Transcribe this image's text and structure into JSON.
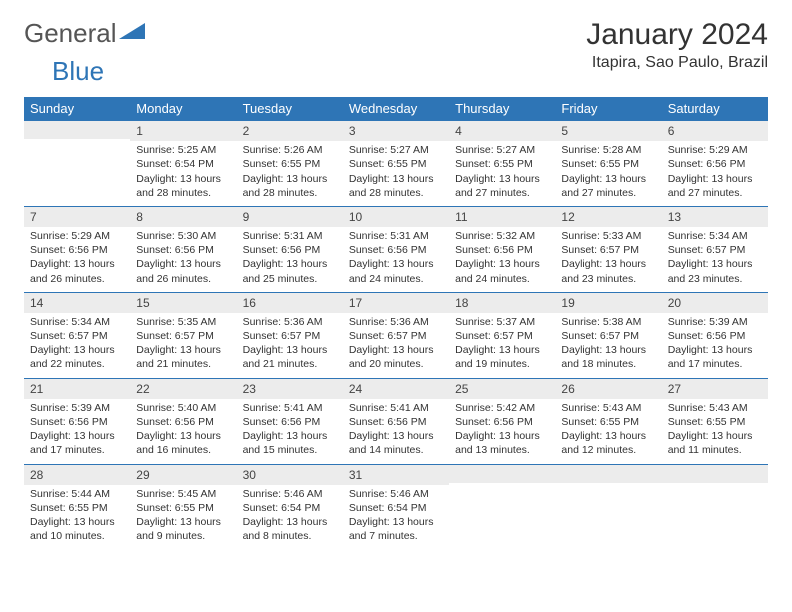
{
  "logo": {
    "text1": "General",
    "text2": "Blue",
    "color_gray": "#555555",
    "color_blue": "#2e75b6"
  },
  "header": {
    "month": "January 2024",
    "location": "Itapira, Sao Paulo, Brazil"
  },
  "theme": {
    "header_bg": "#2e75b6",
    "header_fg": "#ffffff",
    "daynum_bg": "#ececec",
    "border": "#2e75b6"
  },
  "weekdays": [
    "Sunday",
    "Monday",
    "Tuesday",
    "Wednesday",
    "Thursday",
    "Friday",
    "Saturday"
  ],
  "weeks": [
    [
      null,
      {
        "n": "1",
        "sr": "Sunrise: 5:25 AM",
        "ss": "Sunset: 6:54 PM",
        "d1": "Daylight: 13 hours",
        "d2": "and 28 minutes."
      },
      {
        "n": "2",
        "sr": "Sunrise: 5:26 AM",
        "ss": "Sunset: 6:55 PM",
        "d1": "Daylight: 13 hours",
        "d2": "and 28 minutes."
      },
      {
        "n": "3",
        "sr": "Sunrise: 5:27 AM",
        "ss": "Sunset: 6:55 PM",
        "d1": "Daylight: 13 hours",
        "d2": "and 28 minutes."
      },
      {
        "n": "4",
        "sr": "Sunrise: 5:27 AM",
        "ss": "Sunset: 6:55 PM",
        "d1": "Daylight: 13 hours",
        "d2": "and 27 minutes."
      },
      {
        "n": "5",
        "sr": "Sunrise: 5:28 AM",
        "ss": "Sunset: 6:55 PM",
        "d1": "Daylight: 13 hours",
        "d2": "and 27 minutes."
      },
      {
        "n": "6",
        "sr": "Sunrise: 5:29 AM",
        "ss": "Sunset: 6:56 PM",
        "d1": "Daylight: 13 hours",
        "d2": "and 27 minutes."
      }
    ],
    [
      {
        "n": "7",
        "sr": "Sunrise: 5:29 AM",
        "ss": "Sunset: 6:56 PM",
        "d1": "Daylight: 13 hours",
        "d2": "and 26 minutes."
      },
      {
        "n": "8",
        "sr": "Sunrise: 5:30 AM",
        "ss": "Sunset: 6:56 PM",
        "d1": "Daylight: 13 hours",
        "d2": "and 26 minutes."
      },
      {
        "n": "9",
        "sr": "Sunrise: 5:31 AM",
        "ss": "Sunset: 6:56 PM",
        "d1": "Daylight: 13 hours",
        "d2": "and 25 minutes."
      },
      {
        "n": "10",
        "sr": "Sunrise: 5:31 AM",
        "ss": "Sunset: 6:56 PM",
        "d1": "Daylight: 13 hours",
        "d2": "and 24 minutes."
      },
      {
        "n": "11",
        "sr": "Sunrise: 5:32 AM",
        "ss": "Sunset: 6:56 PM",
        "d1": "Daylight: 13 hours",
        "d2": "and 24 minutes."
      },
      {
        "n": "12",
        "sr": "Sunrise: 5:33 AM",
        "ss": "Sunset: 6:57 PM",
        "d1": "Daylight: 13 hours",
        "d2": "and 23 minutes."
      },
      {
        "n": "13",
        "sr": "Sunrise: 5:34 AM",
        "ss": "Sunset: 6:57 PM",
        "d1": "Daylight: 13 hours",
        "d2": "and 23 minutes."
      }
    ],
    [
      {
        "n": "14",
        "sr": "Sunrise: 5:34 AM",
        "ss": "Sunset: 6:57 PM",
        "d1": "Daylight: 13 hours",
        "d2": "and 22 minutes."
      },
      {
        "n": "15",
        "sr": "Sunrise: 5:35 AM",
        "ss": "Sunset: 6:57 PM",
        "d1": "Daylight: 13 hours",
        "d2": "and 21 minutes."
      },
      {
        "n": "16",
        "sr": "Sunrise: 5:36 AM",
        "ss": "Sunset: 6:57 PM",
        "d1": "Daylight: 13 hours",
        "d2": "and 21 minutes."
      },
      {
        "n": "17",
        "sr": "Sunrise: 5:36 AM",
        "ss": "Sunset: 6:57 PM",
        "d1": "Daylight: 13 hours",
        "d2": "and 20 minutes."
      },
      {
        "n": "18",
        "sr": "Sunrise: 5:37 AM",
        "ss": "Sunset: 6:57 PM",
        "d1": "Daylight: 13 hours",
        "d2": "and 19 minutes."
      },
      {
        "n": "19",
        "sr": "Sunrise: 5:38 AM",
        "ss": "Sunset: 6:57 PM",
        "d1": "Daylight: 13 hours",
        "d2": "and 18 minutes."
      },
      {
        "n": "20",
        "sr": "Sunrise: 5:39 AM",
        "ss": "Sunset: 6:56 PM",
        "d1": "Daylight: 13 hours",
        "d2": "and 17 minutes."
      }
    ],
    [
      {
        "n": "21",
        "sr": "Sunrise: 5:39 AM",
        "ss": "Sunset: 6:56 PM",
        "d1": "Daylight: 13 hours",
        "d2": "and 17 minutes."
      },
      {
        "n": "22",
        "sr": "Sunrise: 5:40 AM",
        "ss": "Sunset: 6:56 PM",
        "d1": "Daylight: 13 hours",
        "d2": "and 16 minutes."
      },
      {
        "n": "23",
        "sr": "Sunrise: 5:41 AM",
        "ss": "Sunset: 6:56 PM",
        "d1": "Daylight: 13 hours",
        "d2": "and 15 minutes."
      },
      {
        "n": "24",
        "sr": "Sunrise: 5:41 AM",
        "ss": "Sunset: 6:56 PM",
        "d1": "Daylight: 13 hours",
        "d2": "and 14 minutes."
      },
      {
        "n": "25",
        "sr": "Sunrise: 5:42 AM",
        "ss": "Sunset: 6:56 PM",
        "d1": "Daylight: 13 hours",
        "d2": "and 13 minutes."
      },
      {
        "n": "26",
        "sr": "Sunrise: 5:43 AM",
        "ss": "Sunset: 6:55 PM",
        "d1": "Daylight: 13 hours",
        "d2": "and 12 minutes."
      },
      {
        "n": "27",
        "sr": "Sunrise: 5:43 AM",
        "ss": "Sunset: 6:55 PM",
        "d1": "Daylight: 13 hours",
        "d2": "and 11 minutes."
      }
    ],
    [
      {
        "n": "28",
        "sr": "Sunrise: 5:44 AM",
        "ss": "Sunset: 6:55 PM",
        "d1": "Daylight: 13 hours",
        "d2": "and 10 minutes."
      },
      {
        "n": "29",
        "sr": "Sunrise: 5:45 AM",
        "ss": "Sunset: 6:55 PM",
        "d1": "Daylight: 13 hours",
        "d2": "and 9 minutes."
      },
      {
        "n": "30",
        "sr": "Sunrise: 5:46 AM",
        "ss": "Sunset: 6:54 PM",
        "d1": "Daylight: 13 hours",
        "d2": "and 8 minutes."
      },
      {
        "n": "31",
        "sr": "Sunrise: 5:46 AM",
        "ss": "Sunset: 6:54 PM",
        "d1": "Daylight: 13 hours",
        "d2": "and 7 minutes."
      },
      null,
      null,
      null
    ]
  ]
}
